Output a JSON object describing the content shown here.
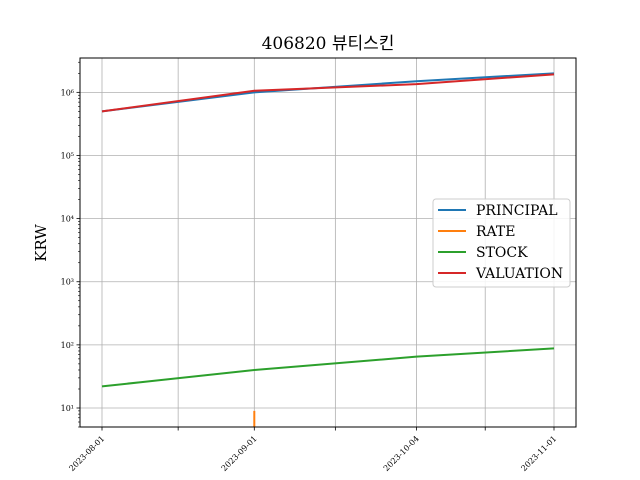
{
  "chart_data": {
    "type": "line",
    "title": "406820 뷰티스킨",
    "xlabel": "",
    "ylabel": "KRW",
    "yscale": "log",
    "ylim": [
      5,
      3500000
    ],
    "grid": true,
    "legend_position": "right",
    "x": [
      "2023-08-01",
      "2023-09-01",
      "2023-10-04",
      "2023-11-01"
    ],
    "x_ticks": [
      "2023-08-01",
      "2023-09-01",
      "2023-10-04",
      "2023-11-01"
    ],
    "y_ticks": [
      "10¹",
      "10²",
      "10³",
      "10⁴",
      "10⁵",
      "10⁶"
    ],
    "series": [
      {
        "name": "PRINCIPAL",
        "color": "#1f77b4",
        "values": [
          500000,
          1000000,
          1500000,
          2000000
        ]
      },
      {
        "name": "RATE",
        "color": "#ff7f0e",
        "values": [
          null,
          9,
          null,
          null
        ]
      },
      {
        "name": "STOCK",
        "color": "#2ca02c",
        "values": [
          22,
          40,
          65,
          88
        ]
      },
      {
        "name": "VALUATION",
        "color": "#d62728",
        "values": [
          500000,
          1060000,
          1350000,
          1930000
        ]
      }
    ]
  }
}
